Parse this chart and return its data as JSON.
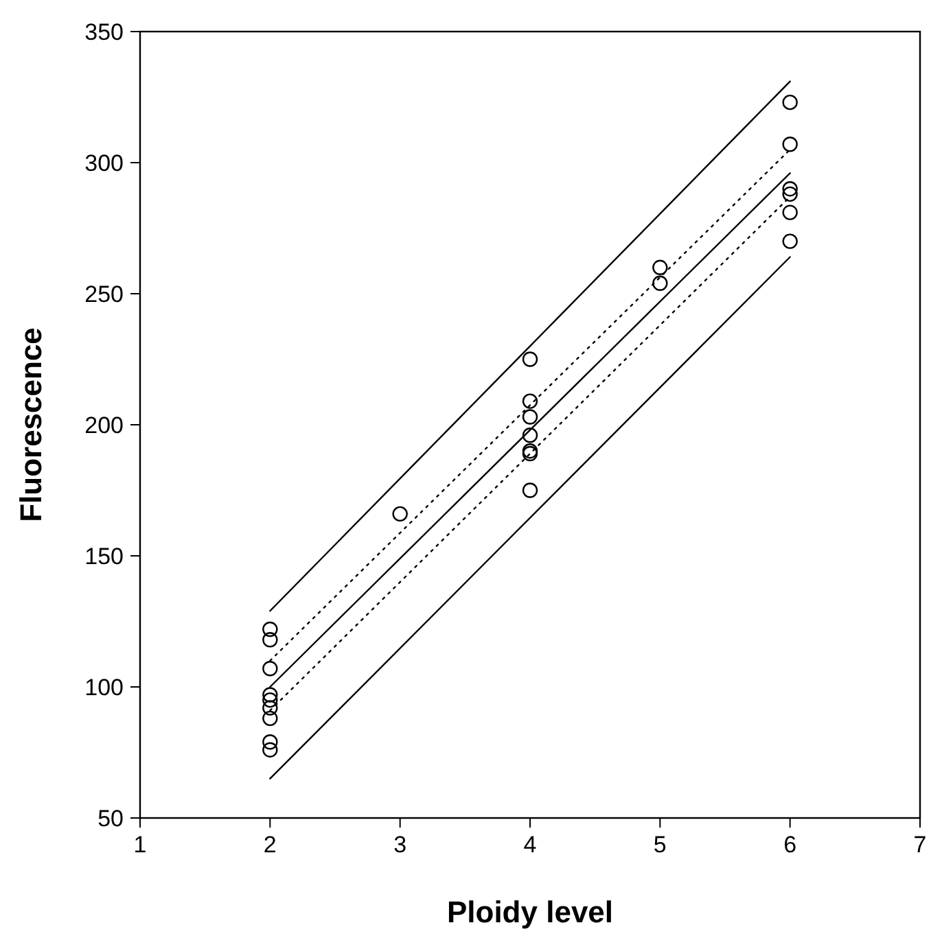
{
  "chart_data": {
    "type": "scatter",
    "xlabel": "Ploidy level",
    "ylabel": "Fluorescence",
    "xlim": [
      1,
      7
    ],
    "ylim": [
      50,
      350
    ],
    "xticks": [
      1,
      2,
      3,
      4,
      5,
      6,
      7
    ],
    "yticks": [
      50,
      100,
      150,
      200,
      250,
      300,
      350
    ],
    "grid": false,
    "series": [
      {
        "color": "#000000",
        "marker": "circle",
        "x": [
          2,
          2,
          2,
          2,
          2,
          2,
          2,
          2,
          2,
          3,
          4,
          4,
          4,
          4,
          4,
          4,
          4,
          5,
          5,
          6,
          6,
          6,
          6,
          6,
          6
        ],
        "values": [
          122,
          118,
          107,
          97,
          95,
          92,
          88,
          79,
          76,
          166,
          225,
          209,
          203,
          196,
          190,
          189,
          175,
          260,
          254,
          323,
          307,
          290,
          288,
          281,
          270
        ]
      },
      {
        "type": "line",
        "color": "#000000",
        "line_style": "solid",
        "marker": "none",
        "x": [
          2,
          6
        ],
        "values": [
          100,
          296
        ]
      },
      {
        "type": "line",
        "color": "#000000",
        "line_style": "dotted",
        "marker": "none",
        "x": [
          2,
          6
        ],
        "values": [
          110,
          305
        ]
      },
      {
        "type": "line",
        "color": "#000000",
        "line_style": "dotted",
        "marker": "none",
        "x": [
          2,
          6
        ],
        "values": [
          91,
          287
        ]
      },
      {
        "type": "line",
        "color": "#000000",
        "line_style": "solid",
        "marker": "none",
        "x": [
          2,
          6
        ],
        "values": [
          129,
          331
        ]
      },
      {
        "type": "line",
        "color": "#000000",
        "line_style": "solid",
        "marker": "none",
        "x": [
          2,
          6
        ],
        "values": [
          65,
          264
        ]
      }
    ]
  }
}
